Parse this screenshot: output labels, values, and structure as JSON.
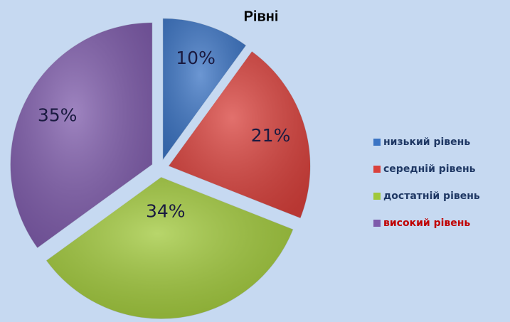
{
  "chart_data": {
    "type": "pie",
    "title": "Рівні",
    "categories": [
      "низький рівень",
      "середній рівень",
      "достатній рівень",
      "високий рівень"
    ],
    "values": [
      10,
      21,
      34,
      35
    ],
    "value_labels": [
      "10%",
      "21%",
      "34%",
      "35%"
    ],
    "colors": [
      "#3b74c4",
      "#d9413c",
      "#a0c83a",
      "#7e5bab"
    ],
    "legend": "right"
  }
}
